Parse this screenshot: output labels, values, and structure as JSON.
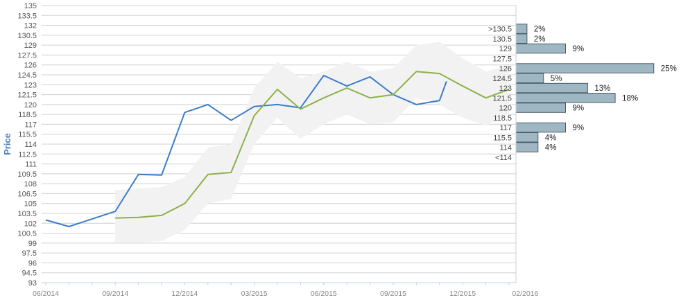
{
  "chart_data": {
    "type": "line",
    "ylabel": "Price",
    "ylim": [
      93,
      135
    ],
    "y_ticks": [
      "93",
      "94.5",
      "96",
      "97.5",
      "99",
      "100.5",
      "102",
      "103.5",
      "105",
      "106.5",
      "108",
      "109.5",
      "111",
      "112.5",
      "114",
      "115.5",
      "117",
      "118.5",
      "120",
      "121.5",
      "123",
      "124.5",
      "126",
      "127.5",
      "129",
      "130.5",
      "132",
      "133.5",
      "135"
    ],
    "x_ticks": [
      "06/2014",
      "09/2014",
      "12/2014",
      "03/2015",
      "06/2015",
      "09/2015",
      "12/2015",
      "02/2016"
    ],
    "series": [
      {
        "color": "#3a7dc9",
        "x": [
          0,
          1,
          3,
          4,
          5,
          6,
          7,
          8,
          9,
          10,
          11,
          12,
          13,
          14,
          15,
          16,
          17,
          17.3
        ],
        "y": [
          102.5,
          101.5,
          103.8,
          109.4,
          109.3,
          118.8,
          120,
          117.6,
          119.7,
          120,
          119.5,
          124.4,
          122.8,
          124.2,
          121.5,
          120,
          120.6,
          123.5
        ]
      },
      {
        "color": "#8db04a",
        "x": [
          3,
          4,
          5,
          6,
          7,
          8,
          9,
          10,
          11,
          12,
          13,
          14,
          15,
          16,
          17,
          18,
          19,
          20
        ],
        "y": [
          102.8,
          102.9,
          103.2,
          105,
          109.4,
          109.7,
          118.3,
          122.3,
          119.3,
          121,
          122.5,
          121,
          121.5,
          125,
          124.7,
          122.8,
          121,
          122.3
        ]
      }
    ],
    "band": {
      "color": "#f2f2f2",
      "x": [
        3,
        4,
        5,
        6,
        7,
        8,
        9,
        10,
        11,
        12,
        13,
        14,
        15,
        16,
        17,
        18,
        19,
        20
      ],
      "upper": [
        107,
        107.3,
        107.5,
        109,
        113.5,
        114,
        122.5,
        126.5,
        124,
        125,
        126.5,
        125,
        125.5,
        129,
        129.5,
        127,
        125,
        126
      ],
      "lower": [
        99,
        99.1,
        99.3,
        101,
        105,
        105.7,
        114,
        118,
        114.8,
        117,
        118.5,
        117,
        117.3,
        121,
        120,
        118,
        116.8,
        118.5
      ]
    },
    "histogram": {
      "color": "#9fb6c3",
      "bins": [
        {
          "label": ">130.5",
          "pct": "2%",
          "value": 2
        },
        {
          "label": "130.5",
          "pct": "2%",
          "value": 2
        },
        {
          "label": "129",
          "pct": "9%",
          "value": 9
        },
        {
          "label": "127.5",
          "pct": "",
          "value": 0
        },
        {
          "label": "126",
          "pct": "25%",
          "value": 25
        },
        {
          "label": "124.5",
          "pct": "5%",
          "value": 5
        },
        {
          "label": "123",
          "pct": "13%",
          "value": 13
        },
        {
          "label": "121.5",
          "pct": "18%",
          "value": 18
        },
        {
          "label": "120",
          "pct": "9%",
          "value": 9
        },
        {
          "label": "118.5",
          "pct": "",
          "value": 0
        },
        {
          "label": "117",
          "pct": "9%",
          "value": 9
        },
        {
          "label": "115.5",
          "pct": "4%",
          "value": 4
        },
        {
          "label": "114",
          "pct": "4%",
          "value": 4
        },
        {
          "label": "<114",
          "pct": "",
          "value": 0
        }
      ]
    },
    "grid": true
  }
}
